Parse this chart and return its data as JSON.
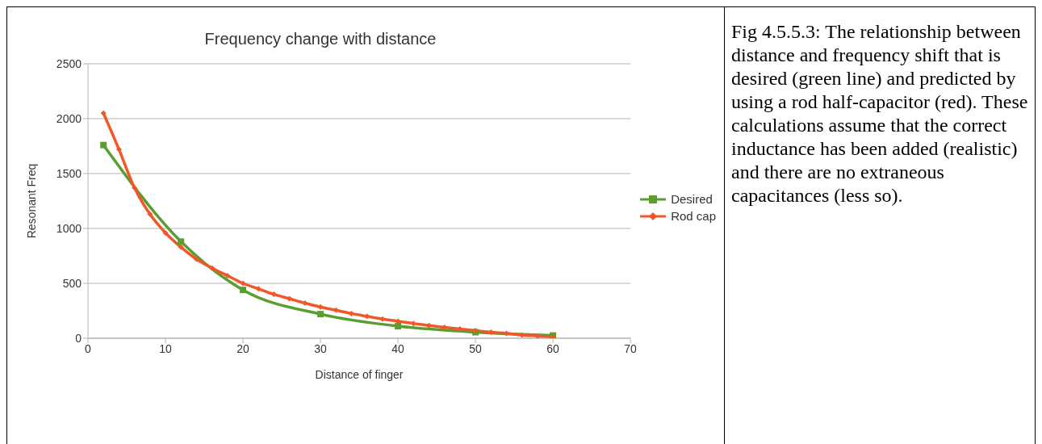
{
  "chart_data": {
    "type": "line",
    "title": "Frequency change with distance",
    "xlabel": "Distance of finger",
    "ylabel": "Resonant Freq",
    "xlim": [
      0,
      70
    ],
    "xticks": [
      0,
      10,
      20,
      30,
      40,
      50,
      60,
      70
    ],
    "ylim": [
      0,
      2500
    ],
    "yticks": [
      0,
      500,
      1000,
      1500,
      2000,
      2500
    ],
    "grid": "y",
    "legend": "right",
    "series": [
      {
        "name": "Desired",
        "color": "#5a9e2f",
        "marker": "square",
        "x": [
          2,
          12,
          20,
          30,
          40,
          50,
          60
        ],
        "values": [
          1760,
          880,
          440,
          220,
          110,
          55,
          25
        ]
      },
      {
        "name": "Rod cap",
        "color": "#f0582a",
        "marker": "diamond",
        "x": [
          2,
          4,
          6,
          8,
          10,
          12,
          14,
          16,
          18,
          20,
          22,
          24,
          26,
          28,
          30,
          32,
          34,
          36,
          38,
          40,
          42,
          44,
          46,
          48,
          50,
          52,
          54,
          56,
          58,
          60
        ],
        "values": [
          2050,
          1720,
          1370,
          1130,
          960,
          830,
          720,
          640,
          570,
          500,
          450,
          400,
          360,
          320,
          285,
          255,
          225,
          200,
          175,
          155,
          135,
          115,
          100,
          85,
          70,
          55,
          45,
          30,
          20,
          10
        ]
      }
    ],
    "annotations": [
      "Fig 4.5.5.3: The relationship between distance and frequency shift that is desired (green line) and predicted by using a rod half-capacitor (red). These calculations assume that the correct inductance has been added (realistic) and there are no extraneous capacitances (less so)."
    ]
  }
}
